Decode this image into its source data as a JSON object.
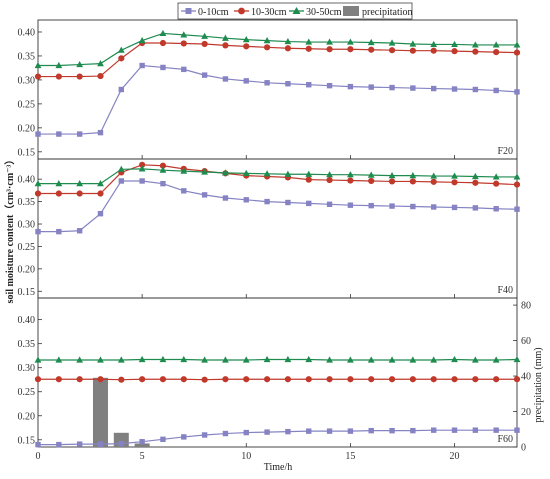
{
  "legend": [
    {
      "label": "0-10cm",
      "color": "#8583c3",
      "marker": "square"
    },
    {
      "label": "10-30cm",
      "color": "#c0392b",
      "marker": "circle"
    },
    {
      "label": "30-50cm",
      "color": "#1e8b4f",
      "marker": "triangle"
    },
    {
      "label": "precipitation",
      "color": "#808080",
      "marker": "bar"
    }
  ],
  "axes": {
    "xlabel": "Time/h",
    "ylabel": "soil moisture content（cm³·cm⁻³）",
    "ylabel_right": "precipitation (mm)"
  },
  "chart_data": [
    {
      "type": "line",
      "panel": "F20",
      "x": [
        0,
        1,
        2,
        3,
        4,
        5,
        6,
        7,
        8,
        9,
        10,
        11,
        12,
        13,
        14,
        15,
        16,
        17,
        18,
        19,
        20,
        21,
        22,
        23
      ],
      "xlim": [
        0,
        23
      ],
      "xticks": [
        0,
        5,
        10,
        15,
        20
      ],
      "ylim": [
        0.135,
        0.425
      ],
      "yticks": [
        0.15,
        0.2,
        0.25,
        0.3,
        0.35,
        0.4
      ],
      "series": [
        {
          "name": "0-10cm",
          "values": [
            0.187,
            0.187,
            0.187,
            0.19,
            0.28,
            0.33,
            0.326,
            0.322,
            0.31,
            0.302,
            0.298,
            0.294,
            0.292,
            0.29,
            0.288,
            0.286,
            0.285,
            0.284,
            0.283,
            0.282,
            0.281,
            0.28,
            0.278,
            0.275
          ]
        },
        {
          "name": "10-30cm",
          "values": [
            0.307,
            0.307,
            0.307,
            0.308,
            0.345,
            0.377,
            0.377,
            0.376,
            0.375,
            0.372,
            0.37,
            0.368,
            0.366,
            0.365,
            0.364,
            0.364,
            0.363,
            0.362,
            0.361,
            0.361,
            0.36,
            0.359,
            0.358,
            0.357
          ]
        },
        {
          "name": "30-50cm",
          "values": [
            0.33,
            0.33,
            0.332,
            0.334,
            0.362,
            0.382,
            0.397,
            0.394,
            0.391,
            0.387,
            0.384,
            0.382,
            0.38,
            0.379,
            0.379,
            0.379,
            0.378,
            0.377,
            0.375,
            0.374,
            0.374,
            0.373,
            0.373,
            0.373
          ]
        }
      ]
    },
    {
      "type": "line",
      "panel": "F40",
      "x": [
        0,
        1,
        2,
        3,
        4,
        5,
        6,
        7,
        8,
        9,
        10,
        11,
        12,
        13,
        14,
        15,
        16,
        17,
        18,
        19,
        20,
        21,
        22,
        23
      ],
      "xlim": [
        0,
        23
      ],
      "xticks": [
        0,
        5,
        10,
        15,
        20
      ],
      "ylim": [
        0.135,
        0.445
      ],
      "yticks": [
        0.15,
        0.2,
        0.25,
        0.3,
        0.35,
        0.4
      ],
      "series": [
        {
          "name": "0-10cm",
          "values": [
            0.283,
            0.283,
            0.285,
            0.323,
            0.396,
            0.396,
            0.39,
            0.374,
            0.365,
            0.358,
            0.354,
            0.35,
            0.348,
            0.346,
            0.344,
            0.342,
            0.341,
            0.34,
            0.339,
            0.338,
            0.337,
            0.336,
            0.334,
            0.333
          ]
        },
        {
          "name": "10-30cm",
          "values": [
            0.368,
            0.368,
            0.368,
            0.368,
            0.415,
            0.432,
            0.43,
            0.423,
            0.418,
            0.413,
            0.408,
            0.406,
            0.404,
            0.399,
            0.398,
            0.397,
            0.396,
            0.395,
            0.395,
            0.394,
            0.393,
            0.392,
            0.39,
            0.388
          ]
        },
        {
          "name": "30-50cm",
          "values": [
            0.39,
            0.39,
            0.39,
            0.39,
            0.422,
            0.423,
            0.42,
            0.418,
            0.416,
            0.414,
            0.413,
            0.412,
            0.411,
            0.411,
            0.41,
            0.41,
            0.409,
            0.408,
            0.408,
            0.407,
            0.407,
            0.406,
            0.405,
            0.405
          ]
        }
      ]
    },
    {
      "type": "line",
      "panel": "F60",
      "x": [
        0,
        1,
        2,
        3,
        4,
        5,
        6,
        7,
        8,
        9,
        10,
        11,
        12,
        13,
        14,
        15,
        16,
        17,
        18,
        19,
        20,
        21,
        22,
        23
      ],
      "xlim": [
        0,
        23
      ],
      "xticks": [
        0,
        5,
        10,
        15,
        20
      ],
      "ylim": [
        0.135,
        0.445
      ],
      "yticks": [
        0.15,
        0.2,
        0.25,
        0.3,
        0.35,
        0.4
      ],
      "y2lim": [
        0,
        84
      ],
      "y2ticks": [
        0,
        20,
        40,
        60,
        80
      ],
      "series": [
        {
          "name": "0-10cm",
          "values": [
            0.14,
            0.14,
            0.141,
            0.141,
            0.142,
            0.146,
            0.151,
            0.156,
            0.16,
            0.163,
            0.165,
            0.166,
            0.167,
            0.168,
            0.168,
            0.168,
            0.169,
            0.169,
            0.169,
            0.17,
            0.17,
            0.17,
            0.17,
            0.17
          ]
        },
        {
          "name": "10-30cm",
          "values": [
            0.276,
            0.276,
            0.276,
            0.276,
            0.275,
            0.276,
            0.276,
            0.276,
            0.275,
            0.276,
            0.276,
            0.276,
            0.276,
            0.276,
            0.276,
            0.276,
            0.276,
            0.276,
            0.276,
            0.276,
            0.276,
            0.276,
            0.276,
            0.276
          ]
        },
        {
          "name": "30-50cm",
          "values": [
            0.316,
            0.316,
            0.316,
            0.316,
            0.316,
            0.317,
            0.317,
            0.317,
            0.316,
            0.316,
            0.316,
            0.317,
            0.317,
            0.317,
            0.316,
            0.316,
            0.316,
            0.316,
            0.316,
            0.316,
            0.317,
            0.316,
            0.316,
            0.317
          ]
        },
        {
          "name": "precipitation",
          "type": "bar",
          "x": [
            3,
            4,
            5
          ],
          "values": [
            39,
            8,
            2
          ]
        }
      ]
    }
  ]
}
